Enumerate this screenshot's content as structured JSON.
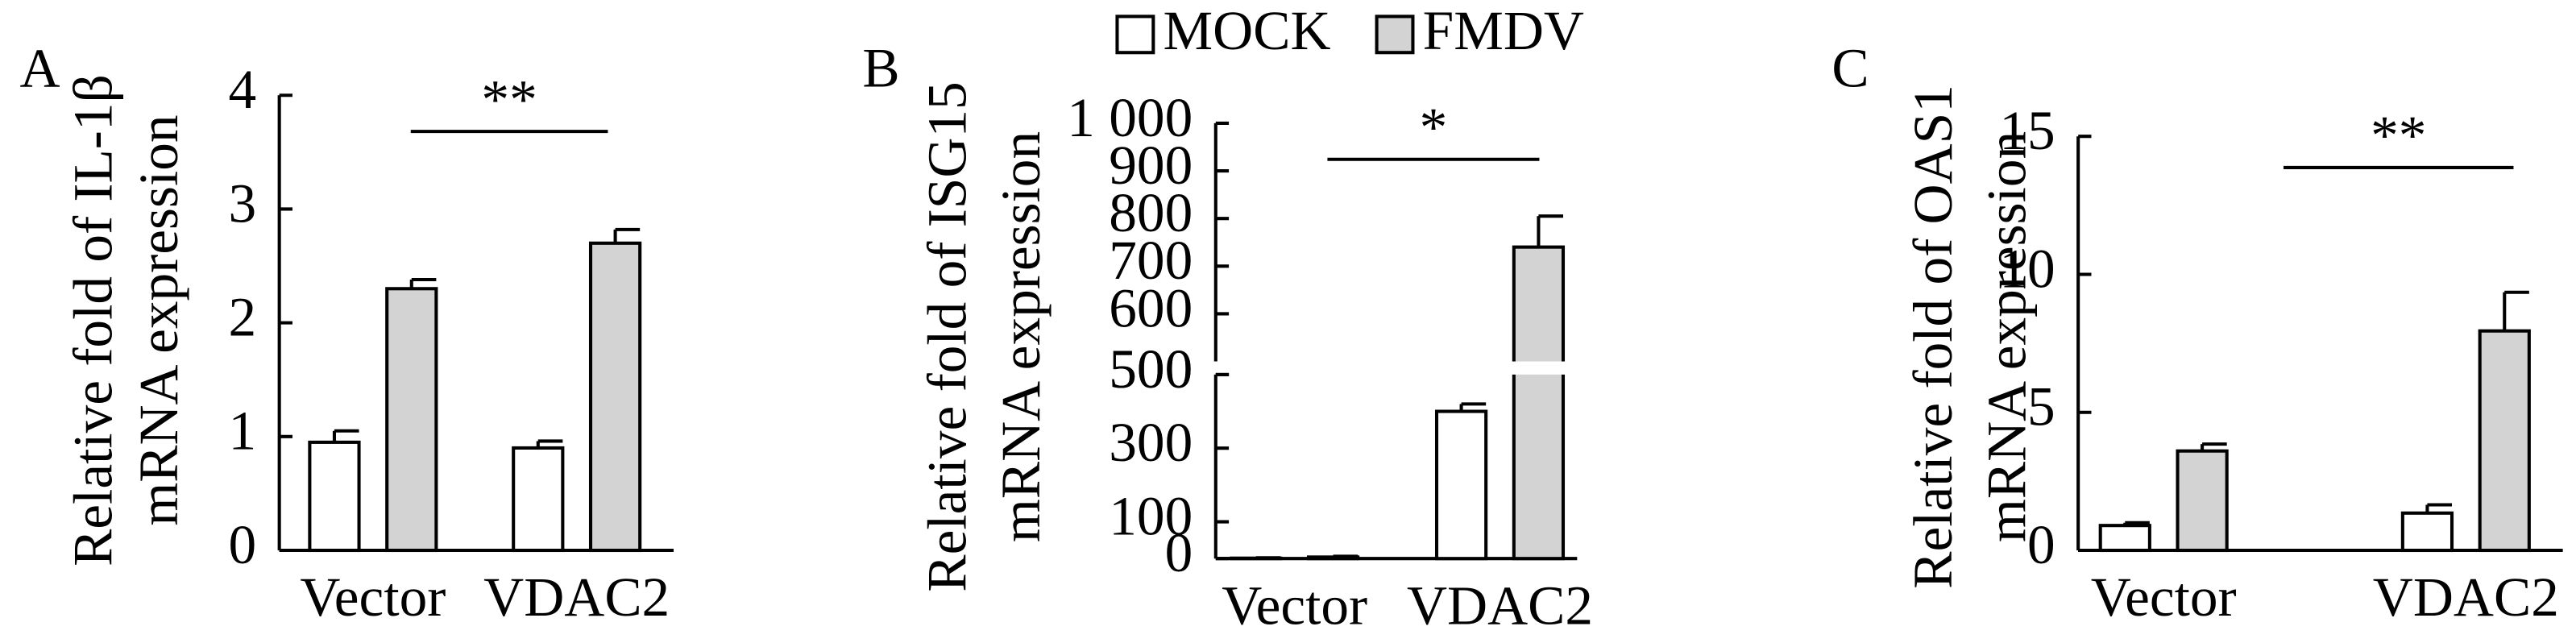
{
  "chart_data": [
    {
      "type": "bar",
      "panel_label": "A",
      "ylabel": [
        "Relative fold of IL-1β",
        "mRNA expression"
      ],
      "categories": [
        "Vector",
        "VDAC2"
      ],
      "series": [
        {
          "name": "MOCK",
          "color": "#ffffff",
          "values": [
            0.95,
            0.9
          ],
          "errors": [
            0.1,
            0.06
          ]
        },
        {
          "name": "FMDV",
          "color": "#d3d3d3",
          "values": [
            2.3,
            2.7
          ],
          "errors": [
            0.08,
            0.12
          ]
        }
      ],
      "ylim": [
        0,
        4
      ],
      "yticks": [
        0,
        1,
        2,
        3,
        4
      ],
      "annotation": "**"
    },
    {
      "type": "bar",
      "panel_label": "B",
      "ylabel": [
        "Relative fold of ISG15",
        "mRNA expression"
      ],
      "categories": [
        "Vector",
        "VDAC2"
      ],
      "series": [
        {
          "name": "MOCK",
          "color": "#ffffff",
          "values": [
            1,
            400
          ],
          "errors": [
            1,
            20
          ]
        },
        {
          "name": "FMDV",
          "color": "#d3d3d3",
          "values": [
            4,
            740
          ],
          "errors": [
            2,
            65
          ]
        }
      ],
      "ylim": [
        0,
        500
      ],
      "yticks": [
        0,
        100,
        300,
        500
      ],
      "y_upper_lim": [
        500,
        1000
      ],
      "y_upper_ticks": [
        500,
        600,
        700,
        800,
        900,
        {
          "value": 1000,
          "label": "1 000"
        }
      ],
      "axis_break": true,
      "annotation": "*"
    },
    {
      "type": "bar",
      "panel_label": "C",
      "ylabel": [
        "Relative fold of OAS1",
        "mRNA expression"
      ],
      "categories": [
        "Vector",
        "VDAC2"
      ],
      "series": [
        {
          "name": "MOCK",
          "color": "#ffffff",
          "values": [
            0.9,
            1.35
          ],
          "errors": [
            0.1,
            0.3
          ]
        },
        {
          "name": "FMDV",
          "color": "#d3d3d3",
          "values": [
            3.6,
            7.95
          ],
          "errors": [
            0.25,
            1.4
          ]
        }
      ],
      "ylim": [
        0,
        15
      ],
      "yticks": [
        0,
        5,
        10,
        15
      ],
      "annotation": "**"
    }
  ]
}
